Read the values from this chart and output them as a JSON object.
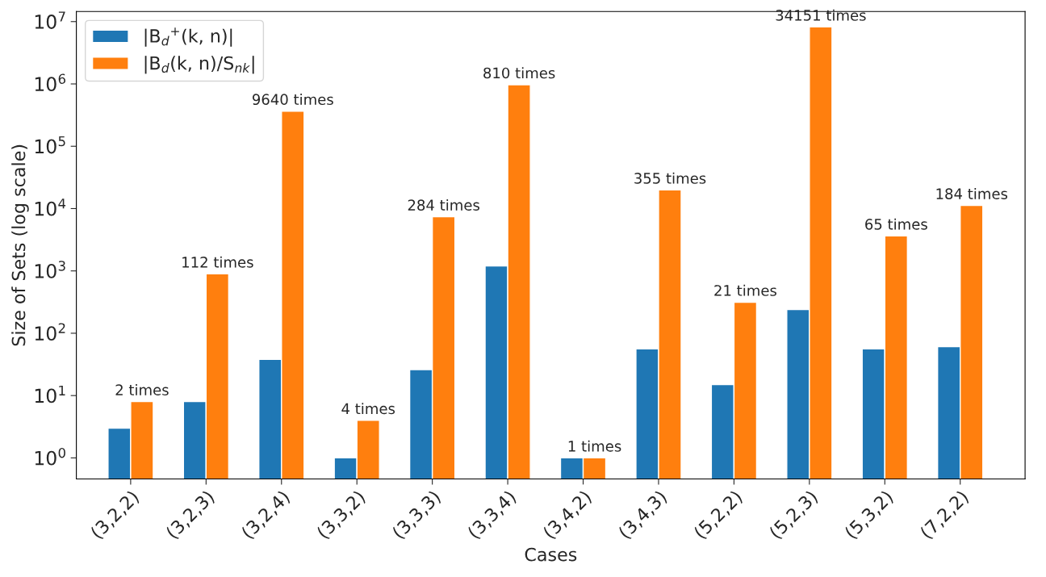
{
  "chart_data": {
    "type": "bar",
    "xlabel": "Cases",
    "ylabel": "Size of Sets (log scale)",
    "log": "y",
    "categories": [
      "(3,2,2)",
      "(3,2,3)",
      "(3,2,4)",
      "(3,3,2)",
      "(3,3,3)",
      "(3,3,4)",
      "(3,4,2)",
      "(3,4,3)",
      "(5,2,2)",
      "(5,2,3)",
      "(5,3,2)",
      "(7,2,2)"
    ],
    "series": [
      {
        "name": "|B$_{d}$$^{+}$(k, n)|",
        "color": "#1f77b4",
        "values": [
          3,
          8,
          38,
          1,
          26,
          1200,
          1,
          56,
          15,
          240,
          56,
          61
        ]
      },
      {
        "name": "|B$_{d}$(k, n)/S$_{nk}$|",
        "color": "#ff7f0e",
        "values": [
          8,
          896,
          366320,
          4,
          7384,
          972000,
          1,
          19880,
          315,
          8200000,
          3640,
          11224
        ]
      }
    ],
    "ylim": [
      0.46,
      14500000
    ],
    "yticks": [
      {
        "value": 1,
        "label": "10$^{0}$"
      },
      {
        "value": 10,
        "label": "10$^{1}$"
      },
      {
        "value": 100,
        "label": "10$^{2}$"
      },
      {
        "value": 1000,
        "label": "10$^{3}$"
      },
      {
        "value": 10000,
        "label": "10$^{4}$"
      },
      {
        "value": 100000,
        "label": "10$^{5}$"
      },
      {
        "value": 1000000,
        "label": "10$^{6}$"
      },
      {
        "value": 10000000,
        "label": "10$^{7}$"
      }
    ],
    "annotations": [
      {
        "text": "2 times",
        "x": "(3,2,2)",
        "y": 8
      },
      {
        "text": "112 times",
        "x": "(3,2,3)",
        "y": 896
      },
      {
        "text": "9640 times",
        "x": "(3,2,4)",
        "y": 366320
      },
      {
        "text": "4 times",
        "x": "(3,3,2)",
        "y": 4
      },
      {
        "text": "284 times",
        "x": "(3,3,3)",
        "y": 7384
      },
      {
        "text": "810 times",
        "x": "(3,3,4)",
        "y": 972000
      },
      {
        "text": "1 times",
        "x": "(3,4,2)",
        "y": 1
      },
      {
        "text": "355 times",
        "x": "(3,4,3)",
        "y": 19880
      },
      {
        "text": "21 times",
        "x": "(5,2,2)",
        "y": 315
      },
      {
        "text": "34151 times",
        "x": "(5,2,3)",
        "y": 8200000
      },
      {
        "text": "65 times",
        "x": "(5,3,2)",
        "y": 3640
      },
      {
        "text": "184 times",
        "x": "(7,2,2)",
        "y": 11224
      }
    ],
    "grid": false,
    "legend": "top left"
  }
}
